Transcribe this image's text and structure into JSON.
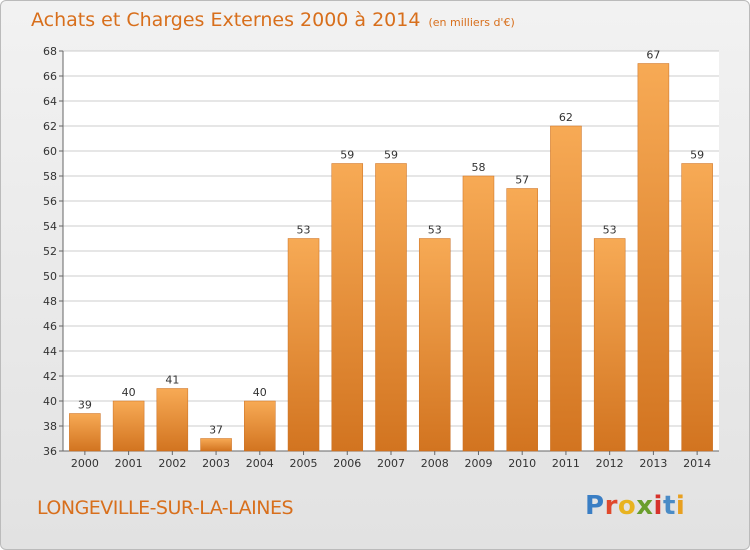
{
  "header": {
    "title": "Achats et Charges Externes 2000 à 2014",
    "unit": "(en milliers d'€)"
  },
  "footer": {
    "city": "LONGEVILLE-SUR-LA-LAINES",
    "logo_text": "Proxiti",
    "logo_letters": [
      "P",
      "r",
      "o",
      "x",
      "i",
      "t",
      "i"
    ],
    "logo_colors": [
      "#3a7ec4",
      "#e0492c",
      "#e8b320",
      "#6a9e2c",
      "#d6322c",
      "#4a8bc6",
      "#e8a020"
    ]
  },
  "colors": {
    "bar_light": "#f7aa55",
    "bar_dark": "#d27420",
    "accent": "#d86f1c",
    "grid": "#cccccc"
  },
  "chart_data": {
    "type": "bar",
    "title": "Achats et Charges Externes 2000 à 2014",
    "subtitle": "(en milliers d'€)",
    "categories": [
      "2000",
      "2001",
      "2002",
      "2003",
      "2004",
      "2005",
      "2006",
      "2007",
      "2008",
      "2009",
      "2010",
      "2011",
      "2012",
      "2013",
      "2014"
    ],
    "values": [
      39,
      40,
      41,
      37,
      40,
      53,
      59,
      59,
      53,
      58,
      57,
      62,
      53,
      67,
      59
    ],
    "ylim": [
      36,
      68
    ],
    "yticks": [
      36,
      38,
      40,
      42,
      44,
      46,
      48,
      50,
      52,
      54,
      56,
      58,
      60,
      62,
      64,
      66,
      68
    ],
    "grid": true,
    "data_labels": true
  }
}
